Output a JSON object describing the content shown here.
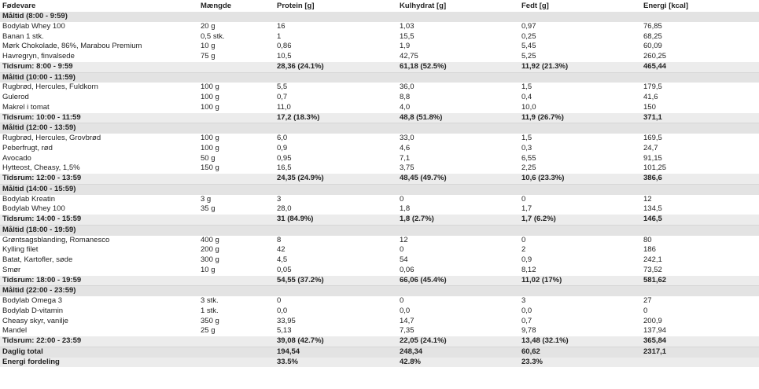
{
  "headers": [
    "Fødevare",
    "Mængde",
    "Protein [g]",
    "Kulhydrat [g]",
    "Fedt [g]",
    "Energi [kcal]"
  ],
  "meals": [
    {
      "title": "Måltid (8:00 - 9:59)",
      "items": [
        [
          "Bodylab Whey 100",
          "20 g",
          "16",
          "1,03",
          "0,97",
          "76,85"
        ],
        [
          "Banan 1 stk.",
          "0,5 stk.",
          "1",
          "15,5",
          "0,25",
          "68,25"
        ],
        [
          "Mørk Chokolade, 86%, Marabou Premium",
          "10 g",
          "0,86",
          "1,9",
          "5,45",
          "60,09"
        ],
        [
          "Havregryn, finvalsede",
          "75 g",
          "10,5",
          "42,75",
          "5,25",
          "260,25"
        ]
      ],
      "subtotal": [
        "Tidsrum: 8:00 - 9:59",
        "",
        "28,36 (24.1%)",
        "61,18 (52.5%)",
        "11,92 (21.3%)",
        "465,44"
      ]
    },
    {
      "title": "Måltid (10:00 - 11:59)",
      "items": [
        [
          "Rugbrød, Hercules, Fuldkorn",
          "100 g",
          "5,5",
          "36,0",
          "1,5",
          "179,5"
        ],
        [
          "Gulerod",
          "100 g",
          "0,7",
          "8,8",
          "0,4",
          "41,6"
        ],
        [
          "Makrel i tomat",
          "100 g",
          "11,0",
          "4,0",
          "10,0",
          "150"
        ]
      ],
      "subtotal": [
        "Tidsrum: 10:00 - 11:59",
        "",
        "17,2 (18.3%)",
        "48,8 (51.8%)",
        "11,9 (26.7%)",
        "371,1"
      ]
    },
    {
      "title": "Måltid (12:00 - 13:59)",
      "items": [
        [
          "Rugbrød, Hercules, Grovbrød",
          "100 g",
          "6,0",
          "33,0",
          "1,5",
          "169,5"
        ],
        [
          "Peberfrugt, rød",
          "100 g",
          "0,9",
          "4,6",
          "0,3",
          "24,7"
        ],
        [
          "Avocado",
          "50 g",
          "0,95",
          "7,1",
          "6,55",
          "91,15"
        ],
        [
          "Hytteost, Cheasy, 1,5%",
          "150 g",
          "16,5",
          "3,75",
          "2,25",
          "101,25"
        ]
      ],
      "subtotal": [
        "Tidsrum: 12:00 - 13:59",
        "",
        "24,35 (24.9%)",
        "48,45 (49.7%)",
        "10,6 (23.3%)",
        "386,6"
      ]
    },
    {
      "title": "Måltid (14:00 - 15:59)",
      "items": [
        [
          "Bodylab Kreatin",
          "3 g",
          "3",
          "0",
          "0",
          "12"
        ],
        [
          "Bodylab Whey 100",
          "35 g",
          "28,0",
          "1,8",
          "1,7",
          "134,5"
        ]
      ],
      "subtotal": [
        "Tidsrum: 14:00 - 15:59",
        "",
        "31 (84.9%)",
        "1,8 (2.7%)",
        "1,7 (6.2%)",
        "146,5"
      ]
    },
    {
      "title": "Måltid (18:00 - 19:59)",
      "items": [
        [
          "Grøntsagsblanding, Romanesco",
          "400 g",
          "8",
          "12",
          "0",
          "80"
        ],
        [
          "Kylling filet",
          "200 g",
          "42",
          "0",
          "2",
          "186"
        ],
        [
          "Batat, Kartofler, søde",
          "300 g",
          "4,5",
          "54",
          "0,9",
          "242,1"
        ],
        [
          "Smør",
          "10 g",
          "0,05",
          "0,06",
          "8,12",
          "73,52"
        ]
      ],
      "subtotal": [
        "Tidsrum: 18:00 - 19:59",
        "",
        "54,55 (37.2%)",
        "66,06 (45.4%)",
        "11,02 (17%)",
        "581,62"
      ]
    },
    {
      "title": "Måltid (22:00 - 23:59)",
      "items": [
        [
          "Bodylab Omega 3",
          "3 stk.",
          "0",
          "0",
          "3",
          "27"
        ],
        [
          "Bodylab D-vitamin",
          "1 stk.",
          "0,0",
          "0,0",
          "0,0",
          "0"
        ],
        [
          "Cheasy skyr, vanilje",
          "350 g",
          "33,95",
          "14,7",
          "0,7",
          "200,9"
        ],
        [
          "Mandel",
          "25 g",
          "5,13",
          "7,35",
          "9,78",
          "137,94"
        ]
      ],
      "subtotal": [
        "Tidsrum: 22:00 - 23:59",
        "",
        "39,08 (42.7%)",
        "22,05 (24.1%)",
        "13,48 (32.1%)",
        "365,84"
      ]
    }
  ],
  "daily_total": [
    "Daglig total",
    "",
    "194,54",
    "248,34",
    "60,62",
    "2317,1"
  ],
  "energy_distribution": [
    "Energi fordeling",
    "",
    "33.5%",
    "42.8%",
    "23.3%",
    ""
  ]
}
